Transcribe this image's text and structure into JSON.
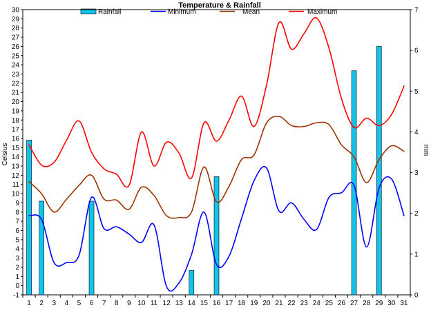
{
  "chart_data": {
    "type": "bar+line",
    "title": "Temperature & Rainfall",
    "x": [
      1,
      2,
      3,
      4,
      5,
      6,
      7,
      8,
      9,
      10,
      11,
      12,
      13,
      14,
      15,
      16,
      17,
      18,
      19,
      20,
      21,
      22,
      23,
      24,
      25,
      26,
      27,
      28,
      29,
      30,
      31
    ],
    "ylabel_left": "Celsius",
    "ylabel_right": "mm",
    "ylim_left": [
      -1,
      30
    ],
    "ylim_right": [
      0,
      7
    ],
    "grid": false,
    "legend_position": "top",
    "bars": {
      "name": "Rainfall",
      "color": "#12c4ec",
      "axis": "right",
      "values": [
        3.8,
        2.3,
        0,
        0,
        0,
        2.3,
        0,
        0,
        0,
        0,
        0,
        0,
        0,
        0.6,
        0,
        2.9,
        0,
        0,
        0,
        0,
        0,
        0,
        0,
        0,
        0,
        0,
        5.5,
        0,
        6.1,
        0,
        0
      ]
    },
    "series": [
      {
        "name": "Minimum",
        "color": "#0000ff",
        "axis": "left",
        "values": [
          7.6,
          7.2,
          2.5,
          2.5,
          3.3,
          9.6,
          6.2,
          6.4,
          5.6,
          4.7,
          6.6,
          -0.1,
          0.3,
          3.4,
          8.0,
          2.3,
          3.2,
          7.3,
          11.4,
          12.8,
          8.1,
          9.0,
          7.2,
          6.1,
          9.6,
          10.1,
          10.9,
          4.2,
          10.6,
          11.6,
          7.6
        ]
      },
      {
        "name": "Mean",
        "color": "#993300",
        "axis": "left",
        "values": [
          11.3,
          10.0,
          8.0,
          9.4,
          10.9,
          12.0,
          9.4,
          9.3,
          8.3,
          10.7,
          9.8,
          7.6,
          7.4,
          8.0,
          12.9,
          9.1,
          10.8,
          13.7,
          14.2,
          17.7,
          18.4,
          17.4,
          17.3,
          17.7,
          17.5,
          15.3,
          14.0,
          11.2,
          13.7,
          15.2,
          14.6
        ]
      },
      {
        "name": "Maximum",
        "color": "#ff0000",
        "axis": "left",
        "values": [
          15.3,
          13.1,
          13.4,
          15.8,
          17.9,
          14.5,
          12.7,
          12.1,
          10.9,
          16.7,
          13.0,
          15.6,
          14.4,
          11.7,
          17.7,
          15.7,
          18.0,
          20.6,
          17.3,
          21.8,
          28.6,
          25.7,
          27.4,
          29.1,
          25.8,
          20.3,
          17.2,
          18.2,
          17.4,
          18.6,
          21.7
        ]
      }
    ],
    "y_ticks_left": [
      "-1",
      "0",
      "1",
      "2",
      "3",
      "4",
      "5",
      "6",
      "7",
      "8",
      "9",
      "10",
      "11",
      "12",
      "13",
      "14",
      "15",
      "16",
      "17",
      "18",
      "19",
      "20",
      "21",
      "22",
      "23",
      "24",
      "25",
      "26",
      "27",
      "28",
      "29",
      "30"
    ],
    "y_ticks_right": [
      "0",
      "1",
      "2",
      "3",
      "4",
      "5",
      "6",
      "7"
    ],
    "x_ticks": [
      "1",
      "2",
      "3",
      "4",
      "5",
      "6",
      "7",
      "8",
      "9",
      "10",
      "11",
      "12",
      "13",
      "14",
      "15",
      "16",
      "17",
      "18",
      "19",
      "20",
      "21",
      "22",
      "23",
      "24",
      "25",
      "26",
      "27",
      "28",
      "29",
      "30",
      "31"
    ]
  }
}
